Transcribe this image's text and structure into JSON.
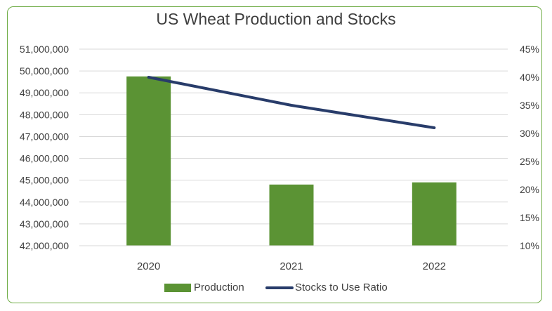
{
  "chart_data": {
    "type": "bar",
    "title": "US Wheat Production and Stocks",
    "categories": [
      "2020",
      "2021",
      "2022"
    ],
    "series": [
      {
        "name": "Production",
        "type": "bar",
        "axis": "left",
        "values": [
          49750000,
          44800000,
          44900000
        ]
      },
      {
        "name": "Stocks to Use Ratio",
        "type": "line",
        "axis": "right",
        "values": [
          0.4,
          0.35,
          0.31
        ]
      }
    ],
    "ylim": [
      42000000,
      51000000
    ],
    "y2lim": [
      0.1,
      0.45
    ],
    "y_ticks": [
      "42,000,000",
      "43,000,000",
      "44,000,000",
      "45,000,000",
      "46,000,000",
      "47,000,000",
      "48,000,000",
      "49,000,000",
      "50,000,000",
      "51,000,000"
    ],
    "y2_ticks": [
      "10%",
      "15%",
      "20%",
      "25%",
      "30%",
      "35%",
      "40%",
      "45%"
    ],
    "grid": true,
    "legend_position": "bottom",
    "colors": {
      "bar": "#5b9334",
      "line": "#283c6a",
      "frame": "#70ad47",
      "grid": "#d9d9d9"
    }
  }
}
